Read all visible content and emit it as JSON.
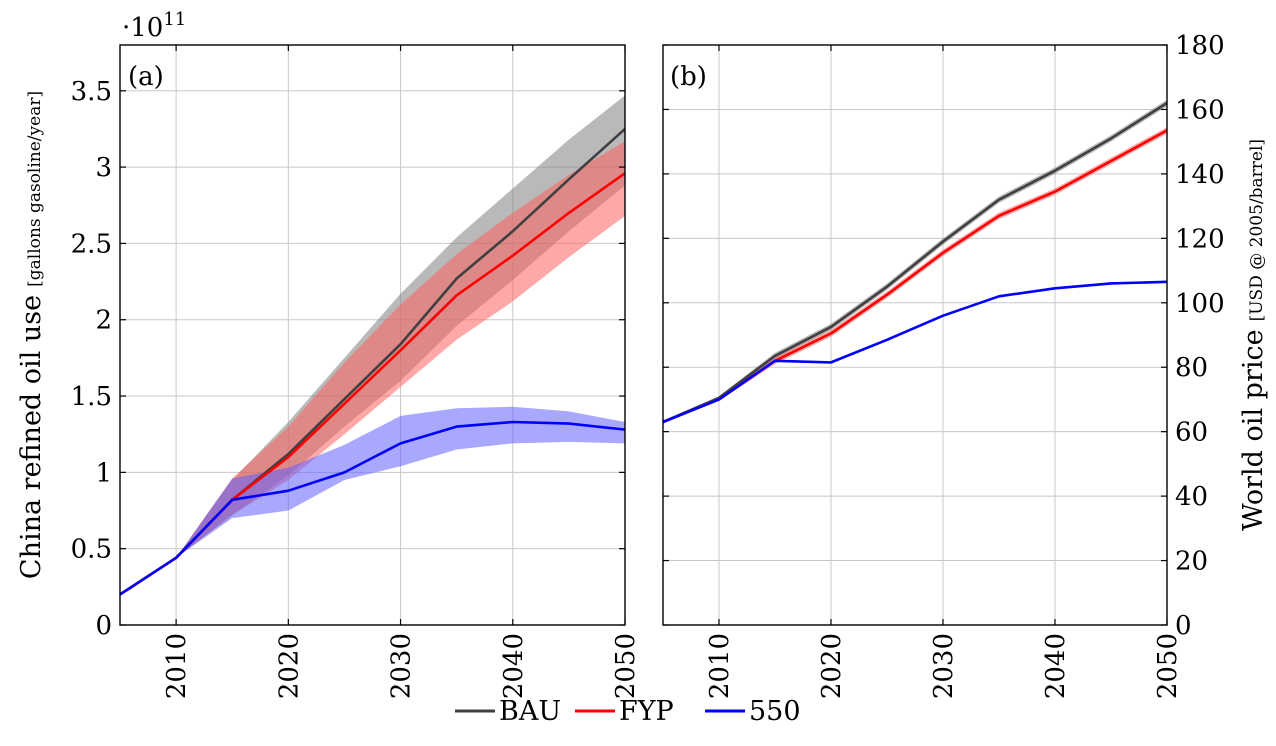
{
  "legend": [
    {
      "label": "BAU",
      "color": "#404040"
    },
    {
      "label": "FYP",
      "color": "#ff0000"
    },
    {
      "label": "550",
      "color": "#0000ff"
    }
  ],
  "chart_data": [
    {
      "type": "line",
      "panel_label": "(a)",
      "ylabel": "China refined oil use",
      "ylabel_unit": "[gallons gasoline/year]",
      "y_multiplier": "·10",
      "y_multiplier_exp": "11",
      "xlim": [
        2005,
        2050
      ],
      "ylim": [
        0,
        3.8
      ],
      "x_ticks": [
        2010,
        2020,
        2030,
        2040,
        2050
      ],
      "y_ticks": [
        0,
        0.5,
        1,
        1.5,
        2,
        2.5,
        3,
        3.5
      ],
      "y_tick_labels": [
        "0",
        "0.5",
        "1",
        "1.5",
        "2",
        "2.5",
        "3",
        "3.5"
      ],
      "grid": true,
      "series": [
        {
          "name": "BAU",
          "color": "#404040",
          "band_color": "#808080",
          "x": [
            2005,
            2010,
            2015,
            2020,
            2025,
            2030,
            2035,
            2040,
            2045,
            2050
          ],
          "values": [
            0.2,
            0.44,
            0.82,
            1.12,
            1.48,
            1.84,
            2.27,
            2.58,
            2.92,
            3.25
          ],
          "lower": [
            0.2,
            0.44,
            0.72,
            0.98,
            1.3,
            1.6,
            1.96,
            2.26,
            2.58,
            2.88
          ],
          "upper": [
            0.2,
            0.44,
            0.95,
            1.33,
            1.75,
            2.17,
            2.54,
            2.86,
            3.18,
            3.47
          ]
        },
        {
          "name": "FYP",
          "color": "#ff0000",
          "band_color": "#ff6060",
          "x": [
            2005,
            2010,
            2015,
            2020,
            2025,
            2030,
            2035,
            2040,
            2045,
            2050
          ],
          "values": [
            0.2,
            0.44,
            0.82,
            1.1,
            1.45,
            1.8,
            2.16,
            2.42,
            2.7,
            2.96
          ],
          "lower": [
            0.2,
            0.44,
            0.72,
            0.95,
            1.25,
            1.56,
            1.87,
            2.12,
            2.41,
            2.68
          ],
          "upper": [
            0.2,
            0.44,
            0.96,
            1.3,
            1.72,
            2.1,
            2.43,
            2.7,
            2.95,
            3.17
          ]
        },
        {
          "name": "550",
          "color": "#0000ff",
          "band_color": "#6060ff",
          "x": [
            2005,
            2010,
            2015,
            2020,
            2025,
            2030,
            2035,
            2040,
            2045,
            2050
          ],
          "values": [
            0.2,
            0.44,
            0.82,
            0.88,
            1.0,
            1.19,
            1.3,
            1.33,
            1.32,
            1.28
          ],
          "lower": [
            0.2,
            0.44,
            0.7,
            0.75,
            0.95,
            1.04,
            1.15,
            1.19,
            1.2,
            1.19
          ],
          "upper": [
            0.2,
            0.44,
            0.96,
            1.03,
            1.18,
            1.37,
            1.42,
            1.43,
            1.4,
            1.33
          ]
        }
      ]
    },
    {
      "type": "line",
      "panel_label": "(b)",
      "ylabel": "World oil price",
      "ylabel_unit": "[USD @ 2005/barrel]",
      "xlim": [
        2005,
        2050
      ],
      "ylim": [
        0,
        180
      ],
      "x_ticks": [
        2010,
        2020,
        2030,
        2040,
        2050
      ],
      "y_ticks": [
        0,
        20,
        40,
        60,
        80,
        100,
        120,
        140,
        160,
        180
      ],
      "y_tick_labels": [
        "0",
        "20",
        "40",
        "60",
        "80",
        "100",
        "120",
        "140",
        "160",
        "180"
      ],
      "grid": true,
      "series": [
        {
          "name": "BAU",
          "color": "#404040",
          "band_color": "#808080",
          "x": [
            2005,
            2010,
            2015,
            2020,
            2025,
            2030,
            2035,
            2040,
            2045,
            2050
          ],
          "values": [
            63,
            70.5,
            83.5,
            92.5,
            105,
            119,
            132,
            141,
            151,
            162
          ],
          "lower": [
            63,
            70,
            82.5,
            91.5,
            104,
            118,
            131,
            140,
            150,
            161
          ],
          "upper": [
            63,
            71,
            84.5,
            93.5,
            106,
            120,
            133,
            142,
            152,
            163
          ]
        },
        {
          "name": "FYP",
          "color": "#ff0000",
          "band_color": "#ff6060",
          "x": [
            2005,
            2010,
            2015,
            2020,
            2025,
            2030,
            2035,
            2040,
            2045,
            2050
          ],
          "values": [
            63,
            70,
            82,
            90.5,
            102.5,
            115.5,
            127,
            134.5,
            144,
            153.5
          ],
          "lower": [
            63,
            69.5,
            81,
            89.5,
            101.5,
            114.5,
            126,
            133.5,
            143,
            152.5
          ],
          "upper": [
            63,
            70.5,
            83,
            91.5,
            103.5,
            116.5,
            128,
            135.5,
            145,
            154.5
          ]
        },
        {
          "name": "550",
          "color": "#0000ff",
          "band_color": "#6060ff",
          "x": [
            2005,
            2010,
            2015,
            2020,
            2025,
            2030,
            2035,
            2040,
            2045,
            2050
          ],
          "values": [
            63,
            70,
            82,
            81.5,
            88.5,
            96,
            102,
            104.5,
            106,
            106.5
          ],
          "lower": [
            63,
            69.7,
            81.7,
            81.2,
            88.2,
            95.7,
            101.7,
            104.2,
            105.7,
            106.2
          ],
          "upper": [
            63,
            70.3,
            82.3,
            81.8,
            88.8,
            96.3,
            102.3,
            104.8,
            106.3,
            106.8
          ]
        }
      ]
    }
  ]
}
